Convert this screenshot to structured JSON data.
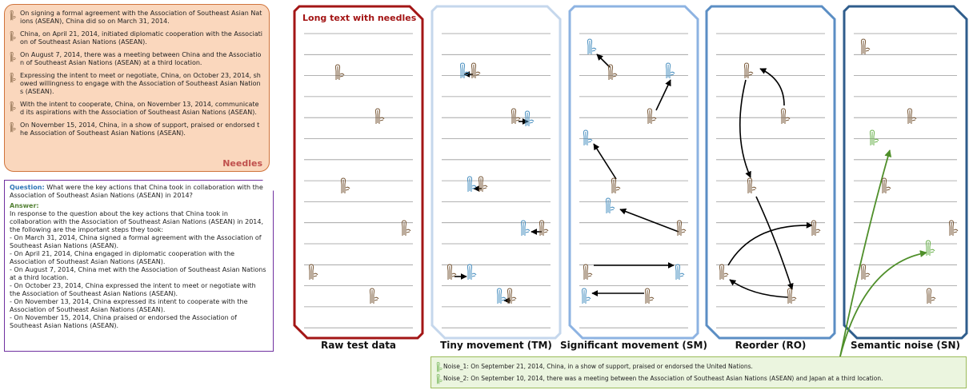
{
  "needles": {
    "label": "Needles",
    "items": [
      "On signing a formal agreement with the Association of Southeast Asian Nations (ASEAN), China did so on March 31, 2014.",
      "China, on April 21, 2014, initiated diplomatic cooperation with the Association of Southeast Asian Nations (ASEAN).",
      "On August 7, 2014, there was a meeting between China and the Association of Southeast Asian Nations (ASEAN) at a third location.",
      "Expressing the intent to meet or negotiate, China, on October 23, 2014, showed willingness to engage with the Association of Southeast Asian Nations (ASEAN).",
      "With the intent to cooperate, China, on November 13, 2014, communicated its aspirations with the Association of Southeast Asian Nations (ASEAN).",
      "On November 15, 2014, China, in a show of support, praised or endorsed the Association of Southeast Asian Nations (ASEAN)."
    ]
  },
  "qa": {
    "question_label": "Question:",
    "question": "What were the key actions that China took in collaboration with the Association of Southeast Asian Nations (ASEAN) in 2014?",
    "answer_label": "Answer:",
    "answer": [
      "In response to the question about the key actions that China took in collaboration with the Association of Southeast Asian Nations (ASEAN) in 2014, the following are the important steps they took:",
      "- On March 31, 2014, China signed a formal agreement with the Association of Southeast Asian Nations (ASEAN).",
      "- On April 21, 2014, China engaged in diplomatic cooperation with the Association of Southeast Asian Nations (ASEAN).",
      "- On August 7, 2014, China met with the Association of Southeast Asian Nations at a third location.",
      "- On October 23, 2014, China expressed the intent to meet or negotiate with the Association of Southeast Asian Nations (ASEAN).",
      "- On November 13, 2014, China expressed its intent to cooperate with the Association of Southeast Asian Nations (ASEAN).",
      "- On November 15, 2014, China praised or endorsed the Association of Southeast Asian Nations (ASEAN)."
    ]
  },
  "panels": [
    {
      "title": "Long text with needles",
      "caption": "Raw test data"
    },
    {
      "caption": "Tiny movement (TM)"
    },
    {
      "caption": "Significant movement (SM)"
    },
    {
      "caption": "Reorder (RO)"
    },
    {
      "caption": "Semantic noise (SN)"
    }
  ],
  "noise": [
    "Noise_1: On September 21, 2014, China, in a show of support, praised or endorsed the United Nations.",
    "Noise_2: On September 10, 2014, there was a meeting between the Association of Southeast Asian Nations (ASEAN) and Japan at a third location."
  ]
}
